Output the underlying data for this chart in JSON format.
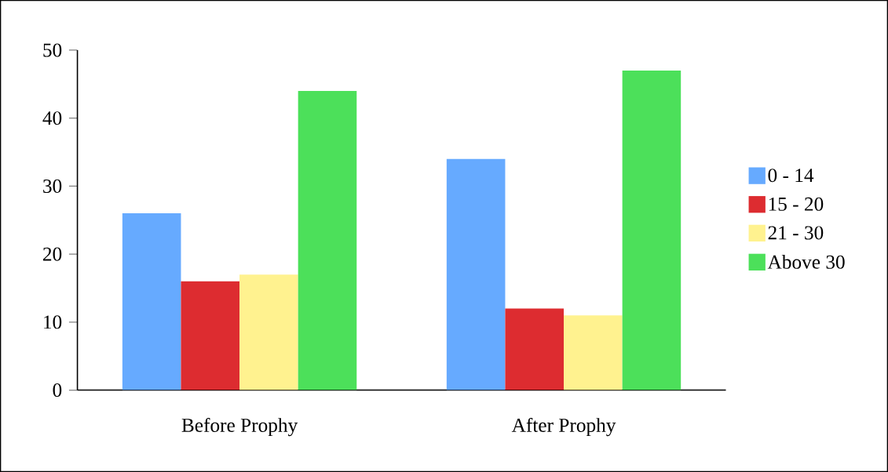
{
  "chart_data": {
    "type": "bar",
    "categories": [
      "Before Prophy",
      "After Prophy"
    ],
    "series": [
      {
        "name": "0 - 14",
        "color": "#66aaff",
        "values": [
          26,
          34
        ]
      },
      {
        "name": "15 - 20",
        "color": "#dd2c30",
        "values": [
          16,
          12
        ]
      },
      {
        "name": "21 - 30",
        "color": "#fff28f",
        "values": [
          17,
          11
        ]
      },
      {
        "name": "Above 30",
        "color": "#4ce05a",
        "values": [
          44,
          47
        ]
      }
    ],
    "ylim": [
      0,
      50
    ],
    "yticks": [
      0,
      10,
      20,
      30,
      40,
      50
    ],
    "grid": false,
    "legend": "right"
  }
}
